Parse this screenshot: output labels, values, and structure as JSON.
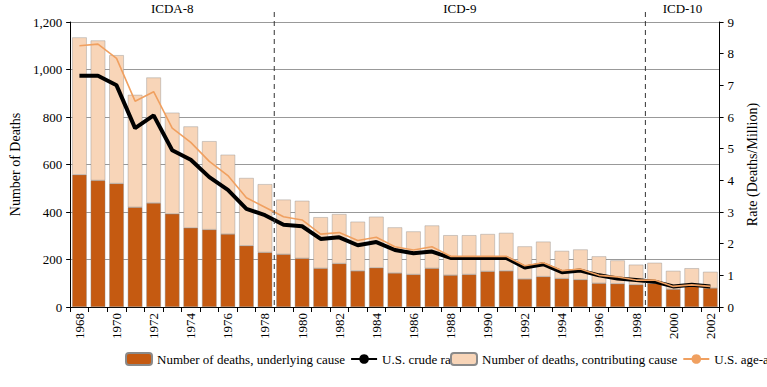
{
  "chart_data": {
    "type": "bar",
    "stacked": true,
    "grid": true,
    "legend": "bottom",
    "categories": [
      "1968",
      null,
      "1970",
      null,
      "1972",
      null,
      "1974",
      null,
      "1976",
      null,
      "1978",
      null,
      "1980",
      null,
      "1982",
      null,
      "1984",
      null,
      "1986",
      null,
      "1988",
      null,
      "1990",
      null,
      "1992",
      null,
      "1994",
      null,
      "1996",
      null,
      "1998",
      null,
      "2000",
      null,
      "2002"
    ],
    "y_label": "Number of Deaths",
    "y2_label": "Rate (Deaths/Million)",
    "ylim": [
      0,
      1200
    ],
    "yticks": [
      0,
      200,
      400,
      600,
      800,
      {
        "value": 1000,
        "label": "1,000"
      },
      {
        "value": 1200,
        "label": "1,200"
      }
    ],
    "y2lim": [
      0,
      9
    ],
    "y2ticks": [
      0,
      1,
      2,
      3,
      4,
      5,
      6,
      7,
      8,
      9
    ],
    "annotations": [
      {
        "text": "ICDA-8",
        "from_index": 0,
        "to_index": 10
      },
      {
        "text": "ICD-9",
        "from_index": 11,
        "to_index": 30
      },
      {
        "text": "ICD-10",
        "from_index": 31,
        "to_index": 34
      }
    ],
    "series": [
      {
        "name": "Number of deaths, underlying cause",
        "type": "bar",
        "color": "#c55a11",
        "values": [
          557,
          533,
          520,
          420,
          438,
          392,
          333,
          326,
          307,
          258,
          230,
          222,
          205,
          163,
          183,
          152,
          165,
          143,
          137,
          163,
          134,
          137,
          150,
          152,
          118,
          128,
          120,
          115,
          100,
          98,
          94,
          100,
          75,
          88,
          80
        ]
      },
      {
        "name": "Number of deaths, contributing cause",
        "type": "bar",
        "color": "#f8d5b8",
        "values": [
          578,
          589,
          540,
          473,
          528,
          426,
          427,
          372,
          334,
          285,
          287,
          230,
          242,
          215,
          208,
          207,
          215,
          192,
          181,
          180,
          168,
          165,
          157,
          160,
          137,
          147,
          116,
          127,
          113,
          98,
          84,
          86,
          77,
          75,
          68
        ]
      },
      {
        "name": "U.S. crude rate",
        "type": "line",
        "axis": "y2",
        "color": "#000000",
        "line_style": "solid",
        "marker": "none",
        "values": [
          7.3,
          7.3,
          7.0,
          5.65,
          6.05,
          4.95,
          4.65,
          4.1,
          3.7,
          3.1,
          2.9,
          2.6,
          2.55,
          2.15,
          2.2,
          1.95,
          2.05,
          1.8,
          1.7,
          1.75,
          1.55,
          1.55,
          1.55,
          1.55,
          1.25,
          1.35,
          1.1,
          1.15,
          1.0,
          0.9,
          0.85,
          0.8,
          0.65,
          0.7,
          0.65
        ]
      },
      {
        "name": "U.S. age-adjusted rate",
        "type": "line",
        "axis": "y2",
        "color": "#f0a060",
        "line_style": "solid",
        "marker": "none",
        "values": [
          8.25,
          8.3,
          7.85,
          6.5,
          6.8,
          5.65,
          5.2,
          4.6,
          4.15,
          3.45,
          3.15,
          2.85,
          2.75,
          2.3,
          2.35,
          2.1,
          2.2,
          1.9,
          1.8,
          1.9,
          1.6,
          1.6,
          1.6,
          1.6,
          1.3,
          1.4,
          1.15,
          1.2,
          1.0,
          0.95,
          0.85,
          0.85,
          0.65,
          0.7,
          0.65
        ]
      }
    ]
  }
}
